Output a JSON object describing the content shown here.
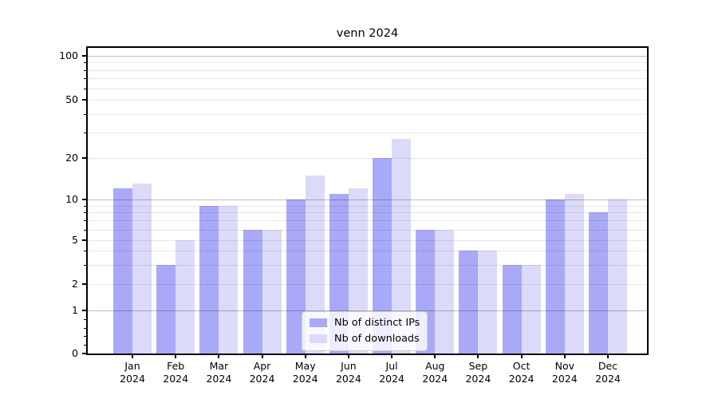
{
  "chart_data": {
    "type": "bar",
    "title": "venn 2024",
    "x_year": "2024",
    "categories": [
      "Jan",
      "Feb",
      "Mar",
      "Apr",
      "May",
      "Jun",
      "Jul",
      "Aug",
      "Sep",
      "Oct",
      "Nov",
      "Dec"
    ],
    "series": [
      {
        "name": "Nb of distinct IPs",
        "color": "#a9a9f8",
        "values": [
          12,
          3,
          9,
          6,
          10,
          11,
          20,
          6,
          4,
          3,
          10,
          8
        ]
      },
      {
        "name": "Nb of downloads",
        "color": "#dbdbf9",
        "values": [
          13,
          5,
          9,
          6,
          15,
          12,
          27,
          6,
          4,
          3,
          11,
          10
        ]
      }
    ],
    "y_axis": {
      "scale": "asinh",
      "major_ticks": [
        0,
        1,
        2,
        5,
        10,
        20,
        50,
        100
      ],
      "decade_ticks": [
        1,
        10,
        100
      ],
      "minor_ticks": [
        0.2,
        0.4,
        0.6,
        0.8,
        3,
        4,
        6,
        7,
        8,
        9,
        30,
        40,
        60,
        70,
        80,
        90
      ],
      "ylim": [
        0,
        100
      ]
    },
    "legend": {
      "position": "lower center"
    },
    "grid": true
  }
}
